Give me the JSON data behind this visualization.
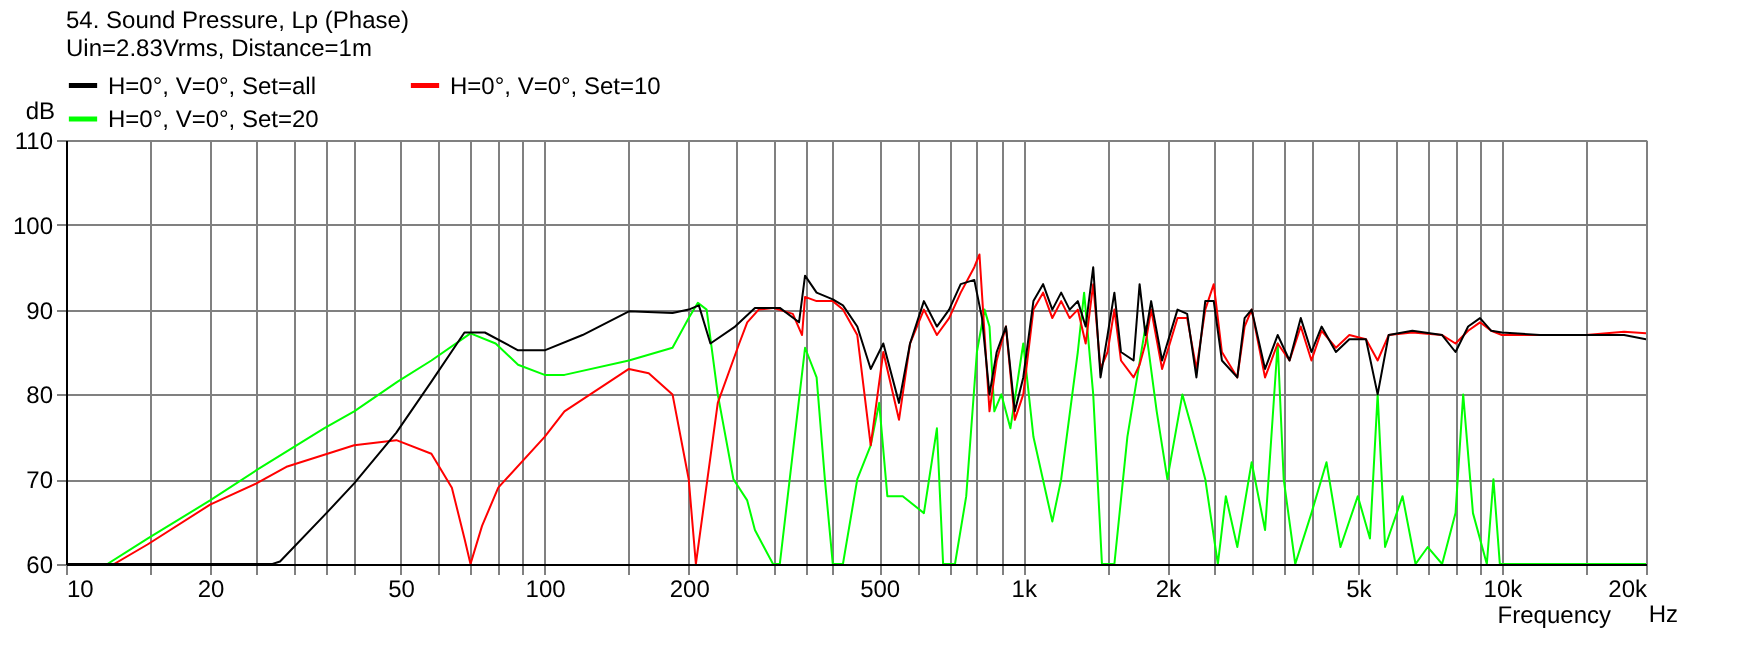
{
  "chart_data": {
    "type": "line",
    "title": "54. Sound Pressure, Lp (Phase)",
    "legend_title": "Uin=2.83Vrms, Distance=1m",
    "ylabel": "dB",
    "xlabel": "Frequency",
    "annotations": [
      "Hz"
    ],
    "log": "x",
    "grid": true,
    "legend": "top",
    "line_style": "solid",
    "marker": "none",
    "xlim": [
      10,
      20000
    ],
    "ylim": [
      60,
      110
    ],
    "yticks": [
      60,
      70,
      80,
      90,
      100,
      110
    ],
    "xticks": [
      10,
      {
        "value": 15,
        "label": null
      },
      20,
      {
        "value": 25,
        "label": null
      },
      {
        "value": 30,
        "label": null
      },
      {
        "value": 35,
        "label": null
      },
      {
        "value": 40,
        "label": null
      },
      50,
      {
        "value": 60,
        "label": null
      },
      {
        "value": 70,
        "label": null
      },
      {
        "value": 80,
        "label": null
      },
      {
        "value": 90,
        "label": null
      },
      100,
      {
        "value": 150,
        "label": null
      },
      200,
      {
        "value": 250,
        "label": null
      },
      {
        "value": 300,
        "label": null
      },
      {
        "value": 350,
        "label": null
      },
      {
        "value": 400,
        "label": null
      },
      500,
      {
        "value": 600,
        "label": null
      },
      {
        "value": 700,
        "label": null
      },
      {
        "value": 800,
        "label": null
      },
      {
        "value": 900,
        "label": null
      },
      {
        "value": 1000,
        "label": "1k"
      },
      {
        "value": 1500,
        "label": null
      },
      {
        "value": 2000,
        "label": "2k"
      },
      {
        "value": 2500,
        "label": null
      },
      {
        "value": 3000,
        "label": null
      },
      {
        "value": 3500,
        "label": null
      },
      {
        "value": 4000,
        "label": null
      },
      {
        "value": 5000,
        "label": "5k"
      },
      {
        "value": 6000,
        "label": null
      },
      {
        "value": 7000,
        "label": null
      },
      {
        "value": 8000,
        "label": null
      },
      {
        "value": 9000,
        "label": null
      },
      {
        "value": 10000,
        "label": "10k"
      },
      {
        "value": 15000,
        "label": null
      },
      {
        "value": 20000,
        "label": "20k"
      }
    ],
    "series": [
      {
        "name": "H=0°, V=0°, Set=all",
        "color": "#000000",
        "x": [
          10,
          27,
          28,
          35,
          40,
          49,
          58,
          68,
          75,
          88,
          100,
          120,
          150,
          185,
          200,
          210,
          222,
          250,
          275,
          310,
          340,
          350,
          370,
          400,
          420,
          450,
          480,
          510,
          550,
          580,
          620,
          660,
          700,
          740,
          790,
          820,
          850,
          880,
          920,
          960,
          1000,
          1050,
          1100,
          1150,
          1200,
          1250,
          1300,
          1350,
          1400,
          1450,
          1500,
          1550,
          1600,
          1700,
          1750,
          1800,
          1850,
          1950,
          2100,
          2200,
          2300,
          2400,
          2500,
          2600,
          2800,
          2900,
          3000,
          3200,
          3400,
          3600,
          3800,
          4000,
          4200,
          4500,
          4800,
          5200,
          5500,
          5800,
          6500,
          7500,
          8000,
          8500,
          9000,
          9500,
          10000,
          12000,
          15000,
          18000,
          20000
        ],
        "values": [
          60,
          60,
          60.3,
          66,
          69.5,
          75.5,
          81.5,
          87.3,
          87.3,
          85.2,
          85.2,
          87,
          89.8,
          89.6,
          90,
          90.5,
          86,
          88,
          90.2,
          90.2,
          88.5,
          94,
          92,
          91.2,
          90.5,
          88,
          83,
          86,
          79,
          86,
          91,
          88,
          90,
          93,
          93.5,
          89,
          80,
          85,
          88,
          78,
          82,
          91,
          93,
          90,
          92,
          90,
          91,
          88,
          95,
          82,
          87,
          92,
          85,
          84,
          93,
          87,
          91,
          84,
          90,
          89.5,
          82,
          91,
          91,
          84,
          82,
          89,
          90,
          83,
          87,
          84,
          89,
          85,
          88,
          85,
          86.5,
          86.5,
          80,
          87,
          87.5,
          87,
          85,
          88,
          89,
          87.5,
          87.3,
          87,
          87,
          87,
          86.5
        ]
      },
      {
        "name": "H=0°, V=0°, Set=10",
        "color": "#ff0000",
        "x": [
          10,
          12.6,
          14.8,
          20,
          25,
          29,
          40,
          49,
          58,
          64,
          68,
          70,
          74,
          80,
          100,
          110,
          150,
          165,
          185,
          200,
          207,
          230,
          255,
          265,
          280,
          300,
          330,
          345,
          350,
          370,
          400,
          420,
          450,
          480,
          510,
          550,
          580,
          620,
          660,
          700,
          740,
          790,
          810,
          850,
          880,
          920,
          960,
          1000,
          1050,
          1100,
          1150,
          1200,
          1250,
          1300,
          1350,
          1400,
          1450,
          1500,
          1550,
          1600,
          1700,
          1750,
          1800,
          1850,
          1950,
          2100,
          2200,
          2300,
          2400,
          2500,
          2600,
          2800,
          2900,
          3000,
          3200,
          3400,
          3600,
          3800,
          4000,
          4200,
          4500,
          4800,
          5200,
          5500,
          5800,
          6500,
          7500,
          8000,
          8500,
          9000,
          9500,
          10000,
          12000,
          15000,
          18000,
          20000
        ],
        "values": [
          60,
          60,
          62.3,
          67,
          69.5,
          71.5,
          74,
          74.6,
          73,
          69,
          63,
          60,
          64.5,
          69,
          75,
          78,
          83,
          82.5,
          80,
          70,
          60,
          79,
          86,
          88.5,
          90,
          90.2,
          89.5,
          87,
          91.5,
          91,
          91,
          90,
          87,
          74,
          85,
          77,
          86,
          90,
          87,
          89,
          92,
          95,
          96.5,
          78,
          84,
          88,
          77,
          80,
          90,
          92,
          89,
          91,
          89,
          90,
          86,
          93,
          83,
          85,
          90,
          84,
          82,
          83.5,
          86,
          90,
          83,
          89,
          89,
          83,
          90,
          93,
          85,
          82,
          88,
          90,
          82,
          86,
          84,
          88,
          84,
          87.5,
          85.5,
          87,
          86.5,
          84,
          87,
          87.3,
          87,
          86,
          87.5,
          88.5,
          87.5,
          87,
          87,
          87,
          87.4,
          87.2
        ]
      },
      {
        "name": "H=0°, V=0°, Set=20",
        "color": "#00ff00",
        "x": [
          10,
          12.2,
          14.8,
          20,
          24.9,
          34.6,
          40,
          49.3,
          58,
          70,
          79,
          88,
          100,
          110,
          150,
          185,
          200,
          209,
          218,
          230,
          248,
          265,
          275,
          300,
          310,
          350,
          370,
          385,
          400,
          420,
          450,
          480,
          500,
          520,
          560,
          620,
          660,
          680,
          720,
          760,
          800,
          830,
          850,
          870,
          900,
          940,
          1000,
          1050,
          1150,
          1200,
          1300,
          1340,
          1400,
          1460,
          1550,
          1650,
          1800,
          1900,
          2000,
          2150,
          2250,
          2400,
          2550,
          2650,
          2800,
          3000,
          3200,
          3400,
          3500,
          3700,
          4000,
          4300,
          4600,
          5000,
          5300,
          5500,
          5700,
          6200,
          6600,
          7000,
          7500,
          8000,
          8300,
          8700,
          9300,
          9600,
          9900,
          20000
        ],
        "values": [
          60,
          60,
          63,
          67.5,
          71,
          76,
          78,
          81.5,
          84,
          87.2,
          86,
          83.5,
          82.3,
          82.3,
          84,
          85.5,
          89,
          90.8,
          90,
          80,
          70,
          67.5,
          64,
          60,
          60,
          85.5,
          82,
          70,
          60,
          60,
          70,
          74,
          79,
          68,
          68,
          66,
          76,
          60,
          60,
          68,
          85,
          90,
          88,
          78,
          80,
          76,
          86,
          75,
          65,
          70,
          85,
          92,
          80,
          60,
          60,
          75,
          88,
          78,
          70,
          80,
          76,
          70,
          60,
          68,
          62,
          72,
          64,
          86,
          70,
          60,
          66,
          72,
          62,
          68,
          63,
          80,
          62,
          68,
          60,
          62,
          60,
          66,
          80,
          66,
          60,
          70,
          60,
          60
        ]
      }
    ]
  }
}
